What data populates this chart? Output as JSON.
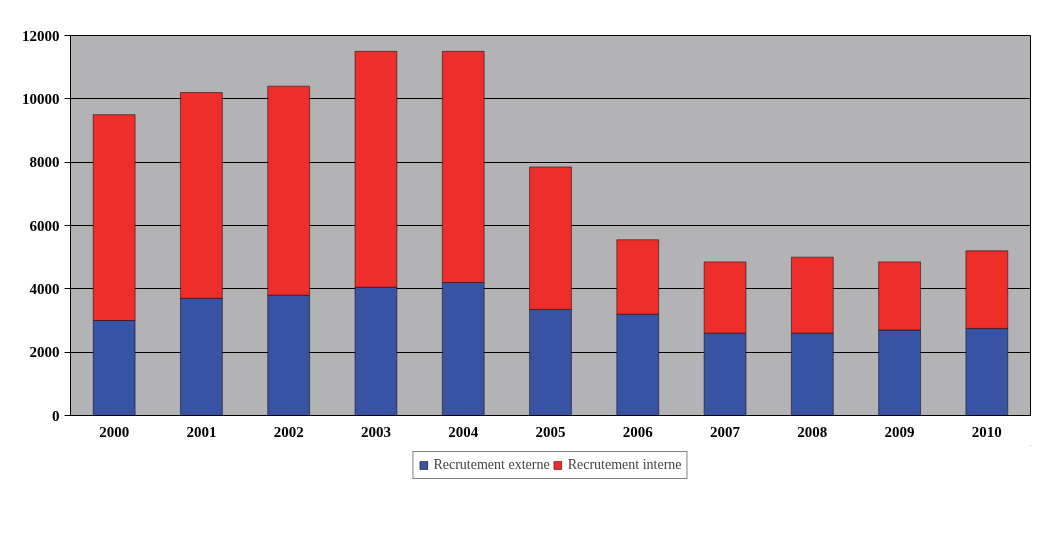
{
  "chart_data": {
    "type": "bar",
    "stacked": true,
    "categories": [
      "2000",
      "2001",
      "2002",
      "2003",
      "2004",
      "2005",
      "2006",
      "2007",
      "2008",
      "2009",
      "2010"
    ],
    "series": [
      {
        "name": "Recrutement externe",
        "color": "#3953a4",
        "values": [
          3000,
          3700,
          3800,
          4050,
          4200,
          3350,
          3200,
          2600,
          2600,
          2700,
          2750
        ]
      },
      {
        "name": "Recrutement interne",
        "color": "#ee2e2a",
        "values": [
          6500,
          6500,
          6600,
          7450,
          7300,
          4500,
          2350,
          2250,
          2400,
          2150,
          2450
        ]
      }
    ],
    "ylim": [
      0,
      12000
    ],
    "yticks": [
      0,
      2000,
      4000,
      6000,
      8000,
      10000,
      12000
    ],
    "grid": "y",
    "legend": "bottom"
  }
}
